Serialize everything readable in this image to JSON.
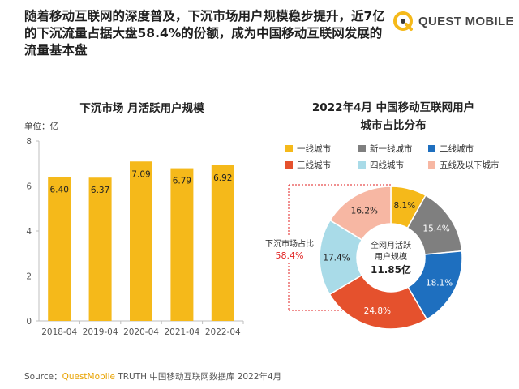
{
  "headline": "随着移动互联网的深度普及，下沉市场用户规模稳步提升，近7亿的下沉流量占据大盘58.4%的份额，成为中国移动互联网发展的流量基本盘",
  "logo": {
    "brand": "QUEST MOBILE"
  },
  "bar_panel": {
    "title": "下沉市场 月活跃用户规模",
    "unit": "单位：亿"
  },
  "pie_panel": {
    "title_line1": "2022年4月 中国移动互联网用户",
    "title_line2": "城市占比分布",
    "center_line1": "全网月活跃",
    "center_line2": "用户规模",
    "center_value": "11.85亿",
    "bracket_label": "下沉市场占比",
    "bracket_value": "58.4%"
  },
  "source": {
    "prefix": "Source：",
    "brand": "QuestMobile",
    "rest": " TRUTH 中国移动互联网数据库 2022年4月"
  },
  "colors": {
    "gold": "#f5b91a",
    "gray": "#7f7f7f",
    "blue": "#1e6fbf",
    "red": "#e5512d",
    "teal": "#a9dbe8",
    "pink": "#f7b7a3",
    "accent_red": "#e02020"
  },
  "chart_data": [
    {
      "type": "bar",
      "title": "下沉市场 月活跃用户规模",
      "unit": "单位：亿",
      "categories": [
        "2018-04",
        "2019-04",
        "2020-04",
        "2021-04",
        "2022-04"
      ],
      "values": [
        6.4,
        6.37,
        7.09,
        6.79,
        6.92
      ],
      "value_labels": [
        "6.40",
        "6.37",
        "7.09",
        "6.79",
        "6.92"
      ],
      "ylim": [
        0,
        8
      ],
      "yticks": [
        0,
        2,
        4,
        6,
        8
      ],
      "color": "#f5b91a",
      "grid": false
    },
    {
      "type": "pie",
      "title": "2022年4月 中国移动互联网用户城市占比分布",
      "donut": true,
      "legend_position": "top",
      "slices": [
        {
          "name": "一线城市",
          "value": 8.1,
          "label": "8.1%",
          "color": "#f5b91a"
        },
        {
          "name": "新一线城市",
          "value": 15.4,
          "label": "15.4%",
          "color": "#7f7f7f"
        },
        {
          "name": "二线城市",
          "value": 18.1,
          "label": "18.1%",
          "color": "#1e6fbf"
        },
        {
          "name": "三线城市",
          "value": 24.8,
          "label": "24.8%",
          "color": "#e5512d"
        },
        {
          "name": "四线城市",
          "value": 17.4,
          "label": "17.4%",
          "color": "#a9dbe8"
        },
        {
          "name": "五线及以下城市",
          "value": 16.2,
          "label": "16.2%",
          "color": "#f7b7a3"
        }
      ]
    }
  ]
}
